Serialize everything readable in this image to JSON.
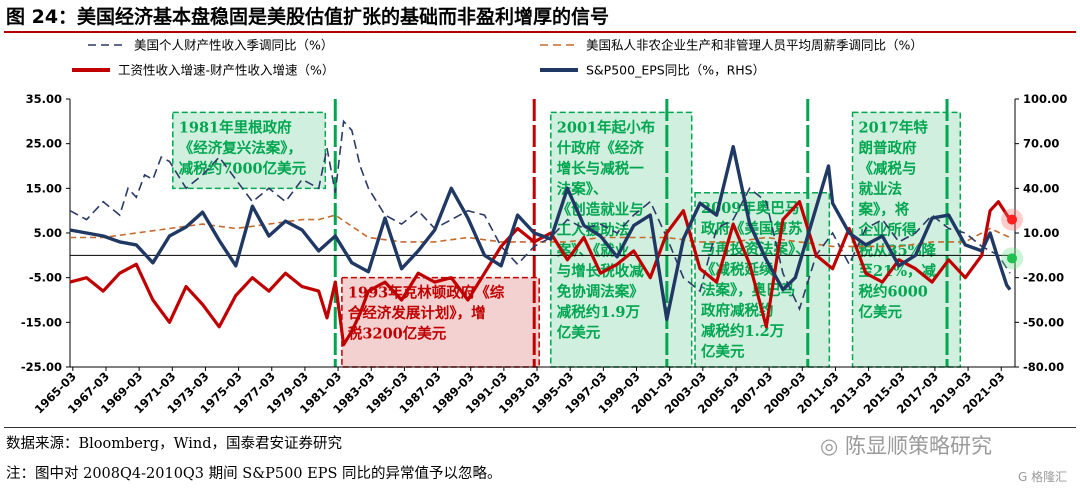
{
  "title": "图 24：美国经济基本盘稳固是美股估值扩张的基础而非盈利增厚的信号",
  "source": "数据来源：Bloomberg，Wind，国泰君安证券研究",
  "note": "注：图中对 2008Q4-2010Q3 期间 S&P500 EPS 同比的异常值予以忽略。",
  "watermark": "陈显顺策略研究",
  "watermark_small": "格隆汇",
  "icons": {
    "watermark": "wechat-icon",
    "watermark_small": "gelonghui-logo-icon"
  },
  "colors": {
    "wealth_income": "#2b3a67",
    "nonfarm_wage": "#c66a2c",
    "wage_minus_wealth": "#c00000",
    "eps": "#203864",
    "box_green": "#00a650",
    "box_red": "#c00000",
    "title_rule": "#b40000"
  },
  "chart_data": {
    "type": "line",
    "legend": [
      {
        "key": "wealth_income",
        "label": "美国个人财产性收入季调同比（%）",
        "style": "dashed"
      },
      {
        "key": "nonfarm_wage",
        "label": "美国私人非农企业生产和非管理人员平均周薪季调同比（%）",
        "style": "dashed"
      },
      {
        "key": "wage_minus_wealth",
        "label": "工资性收入增速-财产性收入增速（%）",
        "style": "solid"
      },
      {
        "key": "eps",
        "label": "S&P500_EPS同比（%，RHS）",
        "style": "solid"
      }
    ],
    "y_left": {
      "min": -25,
      "max": 35,
      "ticks": [
        "35.00",
        "25.00",
        "15.00",
        "5.00",
        "-5.00",
        "-15.00",
        "-25.00"
      ]
    },
    "y_right": {
      "min": -80,
      "max": 100,
      "ticks": [
        "100.00",
        "70.00",
        "40.00",
        "10.00",
        "-20.00",
        "-50.00",
        "-80.00"
      ]
    },
    "x_range": [
      1965.0,
      2022.0
    ],
    "x_ticks": [
      "1965-03",
      "1967-03",
      "1969-03",
      "1971-03",
      "1973-03",
      "1975-03",
      "1977-03",
      "1979-03",
      "1981-03",
      "1983-03",
      "1985-03",
      "1987-03",
      "1989-03",
      "1991-03",
      "1993-03",
      "1995-03",
      "1997-03",
      "1999-03",
      "2001-03",
      "2003-03",
      "2005-03",
      "2007-03",
      "2009-03",
      "2011-03",
      "2013-03",
      "2015-03",
      "2017-03",
      "2019-03",
      "2021-03"
    ],
    "series": {
      "wealth_income": {
        "x": [
          1965,
          1966,
          1967,
          1968,
          1968.5,
          1969,
          1969.5,
          1970,
          1970.5,
          1971,
          1972,
          1973,
          1974,
          1975,
          1976,
          1977,
          1978,
          1979,
          1980,
          1980.5,
          1981,
          1981.5,
          1982,
          1982.5,
          1983,
          1984,
          1985,
          1986,
          1987,
          1988,
          1989,
          1990,
          1991,
          1992,
          1993,
          1994,
          1995,
          1996,
          1997,
          1998,
          1999,
          2000,
          2001,
          2002,
          2003,
          2004,
          2005,
          2006,
          2007,
          2008,
          2009,
          2010,
          2011,
          2012,
          2013,
          2014,
          2015,
          2016,
          2017,
          2018,
          2019,
          2020,
          2021,
          2021.7
        ],
        "y": [
          10,
          8,
          12,
          9,
          15,
          13,
          18,
          17,
          22,
          21,
          15,
          18,
          22,
          17,
          12,
          15,
          12,
          17,
          15,
          24,
          14,
          30,
          28,
          20,
          15,
          9,
          7,
          10,
          6,
          8,
          10,
          9,
          2,
          -2,
          2,
          4,
          8,
          6,
          7,
          5,
          9,
          12,
          4,
          -5,
          -8,
          6,
          8,
          15,
          12,
          -4,
          -12,
          0,
          5,
          -2,
          6,
          8,
          3,
          5,
          9,
          6,
          5,
          2,
          0,
          -4
        ]
      },
      "nonfarm_wage": {
        "x": [
          1965,
          1967,
          1969,
          1971,
          1973,
          1975,
          1977,
          1979,
          1980,
          1981,
          1983,
          1985,
          1987,
          1989,
          1991,
          1993,
          1995,
          1997,
          1999,
          2001,
          2003,
          2005,
          2007,
          2009,
          2011,
          2013,
          2015,
          2017,
          2019,
          2020.5,
          2021.7
        ],
        "y": [
          4,
          4,
          5,
          6,
          7,
          6,
          7,
          8,
          8,
          9,
          4,
          3,
          3,
          4,
          3,
          3,
          3,
          4,
          4,
          4,
          3,
          3,
          4,
          3,
          2,
          2,
          2,
          3,
          3,
          6,
          4
        ]
      },
      "wage_minus_wealth": {
        "x": [
          1965,
          1966,
          1967,
          1968,
          1969,
          1970,
          1971,
          1972,
          1973,
          1974,
          1975,
          1976,
          1977,
          1978,
          1979,
          1980,
          1980.5,
          1981,
          1981.5,
          1982,
          1982.5,
          1983,
          1984,
          1985,
          1986,
          1987,
          1988,
          1989,
          1990,
          1991,
          1992,
          1993,
          1994,
          1995,
          1996,
          1997,
          1998,
          1999,
          2000,
          2001,
          2002,
          2003,
          2004,
          2005,
          2006,
          2007,
          2008,
          2009,
          2010,
          2011,
          2012,
          2013,
          2014,
          2015,
          2016,
          2017,
          2018,
          2019,
          2020,
          2020.5,
          2021,
          2021.7
        ],
        "y": [
          -6,
          -5,
          -8,
          -4,
          -2,
          -10,
          -15,
          -7,
          -11,
          -16,
          -9,
          -5,
          -8,
          -4,
          -7,
          -8,
          -14,
          -6,
          -20,
          -17,
          -13,
          -8,
          -6,
          -10,
          -4,
          -6,
          -5,
          -10,
          -4,
          2,
          6,
          3,
          5,
          -1,
          4,
          -4,
          -2,
          1,
          -5,
          5,
          10,
          -3,
          -6,
          7,
          -2,
          -16,
          8,
          12,
          0,
          -3,
          6,
          -4,
          -6,
          -1,
          -3,
          -6,
          -1,
          -5,
          0,
          10,
          12,
          8
        ]
      },
      "eps": {
        "x": [
          1965,
          1966,
          1967,
          1968,
          1969,
          1970,
          1971,
          1972,
          1973,
          1974,
          1975,
          1976,
          1977,
          1978,
          1979,
          1980,
          1981,
          1982,
          1983,
          1984,
          1985,
          1986,
          1987,
          1988,
          1989,
          1990,
          1991,
          1992,
          1993,
          1994,
          1995,
          1996,
          1997,
          1998,
          1999,
          2000,
          2001,
          2002,
          2003,
          2004,
          2005,
          2006,
          2007,
          2008,
          2008.75,
          2010.75,
          2011,
          2012,
          2013,
          2014,
          2015,
          2016,
          2017,
          2018,
          2019,
          2020,
          2020.5,
          2021,
          2021.5,
          2021.7
        ],
        "y": [
          12,
          10,
          8,
          4,
          2,
          -10,
          8,
          14,
          24,
          5,
          -12,
          28,
          8,
          18,
          12,
          -2,
          8,
          -10,
          -16,
          20,
          -14,
          -2,
          12,
          40,
          20,
          -5,
          -12,
          22,
          10,
          6,
          40,
          15,
          8,
          -6,
          15,
          22,
          -48,
          6,
          30,
          22,
          68,
          16,
          -8,
          -28,
          -20,
          55,
          30,
          10,
          2,
          8,
          -12,
          -5,
          20,
          22,
          2,
          -2,
          10,
          -8,
          -25,
          -28
        ]
      }
    },
    "annotations": [
      {
        "x_from": 1980.7,
        "x_to": 1981.1,
        "color": "green",
        "text": "",
        "type": "marker"
      },
      {
        "x_from": 1973.3,
        "x_to": 1973.6,
        "color": "green",
        "text": "",
        "type": "marker"
      },
      {
        "x_from": 2010.5,
        "x_to": 2011.1,
        "color": "green",
        "text": "",
        "type": "marker"
      }
    ],
    "boxes": [
      {
        "label": "1981年里根政府《经济复兴法案》，减税约7000亿美元",
        "lines": [
          "1981年里根政府",
          "《经济复兴法案》，",
          "减税约7000亿美元"
        ],
        "x_from": 1971.2,
        "x_to": 1980.4,
        "y_top": 32,
        "y_bottom": 15,
        "color": "green"
      },
      {
        "label": "1993年克林顿政府《综合经济发展计划》，增税3200亿美元",
        "lines": [
          "1993年克林顿政府《综",
          "合经济发展计划》，增",
          "税3200亿美元"
        ],
        "x_from": 1981.4,
        "x_to": 1993.3,
        "y_top": -5,
        "y_bottom": -25,
        "color": "red"
      },
      {
        "label": "2001年起小布什政府《经济增长与减税一法案》、《创造就业与工人援助法案》、《就业与增长税收减免协调法案》减税约1.9万亿美元",
        "lines": [
          "2001年起小布",
          "什政府《经济",
          "增长与减税一",
          "法案》、",
          "《创造就业与",
          "工人援助法",
          "案》、《就业",
          "与增长税收减",
          "免协调法案》",
          "减税约1.9万",
          "亿美元"
        ],
        "x_from": 1994.0,
        "x_to": 2002.5,
        "y_top": 32,
        "y_bottom": -25,
        "color": "green"
      },
      {
        "label": "2009年奥巴马政府《美国复苏与再投资法案》、《减税延续法案》等，减税约1.2万亿美元",
        "lines": [
          "2009年奥巴马",
          "政府《美国复苏",
          "与再投资法案》、",
          "《减税延续",
          "法案》，奥巴马",
          "政府减税约",
          "减税约1.2万",
          "亿美元"
        ],
        "x_from": 2002.7,
        "x_to": 2010.8,
        "y_top": 14,
        "y_bottom": -25,
        "color": "green"
      },
      {
        "label": "2017年特朗普政府《减税与就业法案》，将企业所得税从35%降至21%，减税约6000亿美元",
        "lines": [
          "2017年特",
          "朗普政府",
          "《减税与",
          "就业法",
          "案》，将",
          "企业所得",
          "税从35%降",
          "至21%，减",
          "税约6000",
          "亿美元"
        ],
        "x_from": 2012.2,
        "x_to": 2018.7,
        "y_top": 32,
        "y_bottom": -25,
        "color": "green"
      }
    ],
    "vlines": [
      {
        "x": 1981.0,
        "color": "green"
      },
      {
        "x": 1993.0,
        "color": "red"
      },
      {
        "x": 2001.0,
        "color": "green"
      },
      {
        "x": 2009.5,
        "color": "green"
      },
      {
        "x": 2017.9,
        "color": "green"
      }
    ],
    "grid": false,
    "legend_position": "top"
  }
}
